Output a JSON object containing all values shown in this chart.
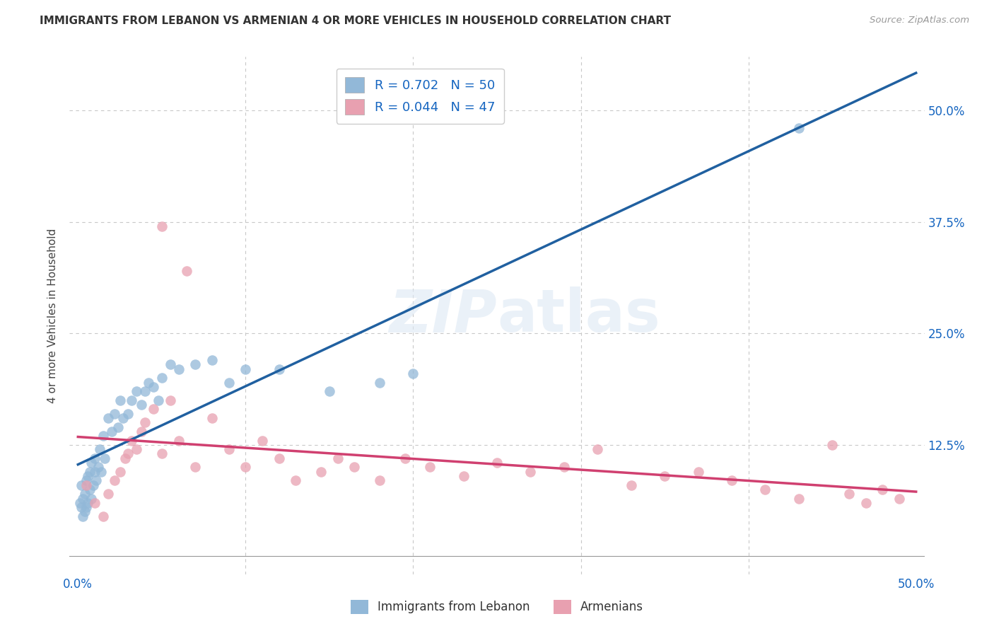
{
  "title": "IMMIGRANTS FROM LEBANON VS ARMENIAN 4 OR MORE VEHICLES IN HOUSEHOLD CORRELATION CHART",
  "source": "Source: ZipAtlas.com",
  "ylabel": "4 or more Vehicles in Household",
  "legend_blue_label": "R = 0.702   N = 50",
  "legend_pink_label": "R = 0.044   N = 47",
  "blue_color": "#92b8d8",
  "pink_color": "#e8a0b0",
  "blue_line_color": "#2060a0",
  "pink_line_color": "#d04070",
  "watermark": "ZIPatlas",
  "background_color": "#ffffff",
  "grid_color": "#c8c8c8",
  "blue_scatter_x": [
    0.001,
    0.002,
    0.002,
    0.003,
    0.003,
    0.004,
    0.004,
    0.005,
    0.005,
    0.006,
    0.006,
    0.007,
    0.007,
    0.008,
    0.008,
    0.009,
    0.01,
    0.01,
    0.011,
    0.012,
    0.013,
    0.014,
    0.015,
    0.016,
    0.018,
    0.02,
    0.022,
    0.024,
    0.025,
    0.027,
    0.03,
    0.032,
    0.035,
    0.038,
    0.04,
    0.042,
    0.045,
    0.048,
    0.05,
    0.055,
    0.06,
    0.07,
    0.08,
    0.09,
    0.1,
    0.12,
    0.15,
    0.18,
    0.2,
    0.43
  ],
  "blue_scatter_y": [
    0.06,
    0.055,
    0.08,
    0.045,
    0.065,
    0.07,
    0.05,
    0.085,
    0.055,
    0.09,
    0.06,
    0.075,
    0.095,
    0.065,
    0.105,
    0.08,
    0.095,
    0.11,
    0.085,
    0.1,
    0.12,
    0.095,
    0.135,
    0.11,
    0.155,
    0.14,
    0.16,
    0.145,
    0.175,
    0.155,
    0.16,
    0.175,
    0.185,
    0.17,
    0.185,
    0.195,
    0.19,
    0.175,
    0.2,
    0.215,
    0.21,
    0.215,
    0.22,
    0.195,
    0.21,
    0.21,
    0.185,
    0.195,
    0.205,
    0.48
  ],
  "pink_scatter_x": [
    0.005,
    0.01,
    0.015,
    0.018,
    0.022,
    0.025,
    0.028,
    0.03,
    0.032,
    0.035,
    0.038,
    0.04,
    0.045,
    0.05,
    0.055,
    0.06,
    0.065,
    0.07,
    0.08,
    0.09,
    0.1,
    0.11,
    0.12,
    0.13,
    0.145,
    0.155,
    0.165,
    0.18,
    0.195,
    0.21,
    0.23,
    0.25,
    0.27,
    0.29,
    0.31,
    0.33,
    0.35,
    0.37,
    0.39,
    0.41,
    0.43,
    0.45,
    0.46,
    0.47,
    0.48,
    0.49,
    0.05
  ],
  "pink_scatter_y": [
    0.08,
    0.06,
    0.045,
    0.07,
    0.085,
    0.095,
    0.11,
    0.115,
    0.13,
    0.12,
    0.14,
    0.15,
    0.165,
    0.115,
    0.175,
    0.13,
    0.32,
    0.1,
    0.155,
    0.12,
    0.1,
    0.13,
    0.11,
    0.085,
    0.095,
    0.11,
    0.1,
    0.085,
    0.11,
    0.1,
    0.09,
    0.105,
    0.095,
    0.1,
    0.12,
    0.08,
    0.09,
    0.095,
    0.085,
    0.075,
    0.065,
    0.125,
    0.07,
    0.06,
    0.075,
    0.065,
    0.37
  ],
  "blue_R": 0.702,
  "blue_N": 50,
  "pink_R": 0.044,
  "pink_N": 47,
  "xlim": [
    0.0,
    0.5
  ],
  "ylim": [
    0.0,
    0.55
  ],
  "yticks": [
    0.0,
    0.125,
    0.25,
    0.375,
    0.5
  ],
  "ytick_labels": [
    "",
    "12.5%",
    "25.0%",
    "37.5%",
    "50.0%"
  ],
  "xtick_labels_left": "0.0%",
  "xtick_labels_right": "50.0%"
}
